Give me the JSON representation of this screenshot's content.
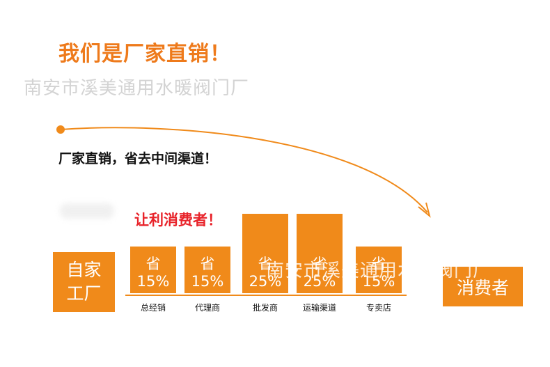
{
  "title": "我们是厂家直销！",
  "watermark": "南安市溪美通用水暖阀门厂",
  "subtitle": "厂家直销，省去中间渠道！",
  "slogan": "让利消费者！",
  "source": {
    "line1": "自家",
    "line2": "工厂"
  },
  "target": "消费者",
  "colors": {
    "accent": "#f08a1a",
    "title": "#ee7a1b",
    "slogan": "#e8232a"
  },
  "channels": [
    {
      "label": "总经销",
      "save": "省",
      "percent": "15%",
      "value": 15
    },
    {
      "label": "代理商",
      "save": "省",
      "percent": "15%",
      "value": 15
    },
    {
      "label": "批发商",
      "save": "省",
      "percent": "25%",
      "value": 25
    },
    {
      "label": "运输渠道",
      "save": "省",
      "percent": "25%",
      "value": 25
    },
    {
      "label": "专卖店",
      "save": "省",
      "percent": "15%",
      "value": 15
    }
  ]
}
